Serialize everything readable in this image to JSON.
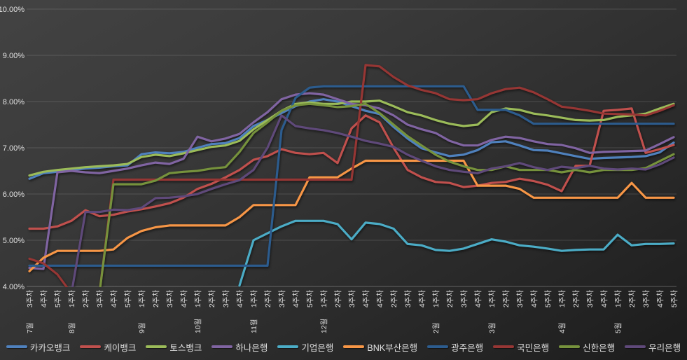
{
  "chart_data": {
    "type": "line",
    "title": "",
    "grid": true,
    "legend_position": "bottom",
    "y_axis": {
      "min": 4,
      "max": 10,
      "step": 1,
      "tick_labels": [
        "10.00%",
        "9.00%",
        "8.00%",
        "7.00%",
        "6.00%",
        "5.00%",
        "4.00%"
      ]
    },
    "x_axis": {
      "week_labels": [
        "3주차",
        "4주차",
        "5주차",
        "1주차",
        "2주차",
        "3주차",
        "4주차",
        "5주차",
        "1주차",
        "2주차",
        "3주차",
        "4주차",
        "1주차",
        "2주차",
        "3주차",
        "4주차",
        "1주차",
        "2주차",
        "3주차",
        "4주차",
        "5주차",
        "1주차",
        "2주차",
        "3주차",
        "4주차",
        "4주차",
        "2주차",
        "3주차",
        "4주차",
        "1주차",
        "2주차",
        "3주차",
        "4주차",
        "1주차",
        "2주차",
        "3주차",
        "4주차",
        "5주차",
        "1주차",
        "2주차",
        "3주차",
        "4주차",
        "1주차",
        "2주차",
        "3주차",
        "4주차",
        "5주차"
      ],
      "month_groups": [
        {
          "label": "7월",
          "start_index": 0
        },
        {
          "label": "8월",
          "start_index": 3
        },
        {
          "label": "9월",
          "start_index": 8
        },
        {
          "label": "10월",
          "start_index": 12
        },
        {
          "label": "11월",
          "start_index": 16
        },
        {
          "label": "12월",
          "start_index": 21
        },
        {
          "label": "2월",
          "start_index": 29
        },
        {
          "label": "3월",
          "start_index": 33
        },
        {
          "label": "4월",
          "start_index": 38
        },
        {
          "label": "5월",
          "start_index": 42
        }
      ]
    },
    "series": [
      {
        "name": "카카오뱅크",
        "color": "#4F81BD",
        "values": [
          6.33,
          6.45,
          6.48,
          6.52,
          6.55,
          6.57,
          6.6,
          6.62,
          6.86,
          6.9,
          6.88,
          6.91,
          7.0,
          7.08,
          7.1,
          7.21,
          7.47,
          7.6,
          7.75,
          7.9,
          8.0,
          8.05,
          8.0,
          7.9,
          7.8,
          7.73,
          7.45,
          7.2,
          6.99,
          6.9,
          6.82,
          6.85,
          6.95,
          7.12,
          7.14,
          7.05,
          6.95,
          6.94,
          6.88,
          6.82,
          6.76,
          6.78,
          6.79,
          6.8,
          6.82,
          6.9,
          7.11
        ]
      },
      {
        "name": "케이뱅크",
        "color": "#C0504D",
        "values": [
          5.25,
          5.25,
          5.3,
          5.42,
          5.65,
          5.52,
          5.55,
          5.62,
          5.67,
          5.73,
          5.8,
          5.92,
          6.11,
          6.22,
          6.36,
          6.52,
          6.74,
          6.82,
          6.97,
          6.89,
          6.86,
          6.89,
          6.67,
          7.42,
          7.7,
          7.55,
          7.0,
          6.52,
          6.36,
          6.26,
          6.24,
          6.15,
          6.18,
          6.24,
          6.26,
          6.33,
          6.28,
          6.2,
          6.06,
          6.61,
          6.61,
          7.8,
          7.82,
          7.85,
          6.89,
          6.97,
          7.06
        ]
      },
      {
        "name": "토스뱅크",
        "color": "#9BBB59",
        "values": [
          6.4,
          6.48,
          6.52,
          6.55,
          6.58,
          6.6,
          6.62,
          6.65,
          6.8,
          6.85,
          6.82,
          6.88,
          6.95,
          7.02,
          7.05,
          7.15,
          7.4,
          7.6,
          7.8,
          7.95,
          7.98,
          7.95,
          7.95,
          8.0,
          8.0,
          8.02,
          7.9,
          7.77,
          7.7,
          7.6,
          7.52,
          7.47,
          7.5,
          7.77,
          7.85,
          7.82,
          7.74,
          7.7,
          7.65,
          7.6,
          7.59,
          7.6,
          7.67,
          7.7,
          7.74,
          7.85,
          7.95
        ]
      },
      {
        "name": "하나은행",
        "color": "#8064A2",
        "values": [
          4.4,
          4.38,
          6.47,
          6.5,
          6.47,
          6.45,
          6.5,
          6.55,
          6.62,
          6.68,
          6.65,
          6.76,
          7.24,
          7.14,
          7.2,
          7.3,
          7.55,
          7.77,
          8.05,
          8.15,
          8.18,
          8.15,
          8.05,
          7.95,
          7.92,
          7.85,
          7.7,
          7.5,
          7.4,
          7.32,
          7.15,
          7.05,
          7.05,
          7.17,
          7.24,
          7.21,
          7.14,
          7.08,
          7.06,
          6.99,
          6.89,
          6.91,
          6.92,
          6.93,
          6.94,
          7.08,
          7.23
        ]
      },
      {
        "name": "기업은행",
        "color": "#4BACC6",
        "values": [
          null,
          null,
          null,
          null,
          null,
          null,
          null,
          null,
          null,
          null,
          null,
          null,
          null,
          null,
          null,
          4.02,
          5.0,
          5.15,
          5.3,
          5.42,
          5.42,
          5.42,
          5.35,
          5.02,
          5.38,
          5.35,
          5.25,
          4.92,
          4.89,
          4.79,
          4.77,
          4.82,
          4.92,
          5.02,
          4.97,
          4.89,
          4.86,
          4.82,
          4.77,
          4.79,
          4.8,
          4.8,
          5.12,
          4.89,
          4.92,
          4.92,
          4.93
        ]
      },
      {
        "name": "BNK부산은행",
        "color": "#F79646",
        "values": [
          4.33,
          4.62,
          4.77,
          4.77,
          4.77,
          4.77,
          4.8,
          5.05,
          5.2,
          5.28,
          5.32,
          5.32,
          5.32,
          5.32,
          5.32,
          5.5,
          5.76,
          5.76,
          5.76,
          5.76,
          6.36,
          6.36,
          6.36,
          6.55,
          6.72,
          6.72,
          6.72,
          6.72,
          6.72,
          6.72,
          6.72,
          6.72,
          6.18,
          6.18,
          6.18,
          6.11,
          5.92,
          5.92,
          5.92,
          5.92,
          5.92,
          5.92,
          5.92,
          6.24,
          5.92,
          5.92,
          5.92
        ]
      },
      {
        "name": "광주은행",
        "color": "#2C5C8E",
        "values": [
          4.45,
          4.45,
          4.45,
          4.45,
          4.45,
          4.45,
          4.45,
          4.45,
          4.45,
          4.45,
          4.45,
          4.45,
          4.45,
          4.45,
          4.45,
          4.45,
          4.45,
          4.45,
          7.38,
          8.08,
          8.3,
          8.33,
          8.33,
          8.33,
          8.33,
          8.33,
          8.33,
          8.33,
          8.33,
          8.33,
          8.33,
          8.33,
          7.82,
          7.82,
          7.82,
          7.7,
          7.52,
          7.52,
          7.52,
          7.52,
          7.52,
          7.52,
          7.52,
          7.52,
          7.52,
          7.52,
          7.52
        ]
      },
      {
        "name": "국민은행",
        "color": "#963634",
        "values": [
          4.6,
          4.5,
          4.26,
          3.85,
          3.85,
          3.85,
          6.31,
          6.31,
          6.31,
          6.31,
          6.31,
          6.31,
          6.31,
          6.31,
          6.31,
          6.31,
          6.31,
          6.31,
          6.31,
          6.31,
          6.31,
          6.31,
          6.31,
          6.31,
          8.79,
          8.76,
          8.53,
          8.35,
          8.25,
          8.18,
          8.05,
          8.03,
          8.05,
          8.18,
          8.27,
          8.3,
          8.2,
          8.05,
          7.89,
          7.85,
          7.8,
          7.74,
          7.73,
          7.72,
          7.7,
          7.8,
          7.92
        ]
      },
      {
        "name": "신한은행",
        "color": "#76923C",
        "values": [
          3.85,
          3.85,
          3.85,
          3.85,
          3.85,
          3.85,
          6.21,
          6.21,
          6.21,
          6.29,
          6.45,
          6.48,
          6.5,
          6.55,
          6.58,
          6.91,
          7.32,
          7.55,
          7.8,
          7.92,
          7.95,
          7.92,
          7.88,
          7.9,
          7.95,
          7.75,
          7.5,
          7.25,
          7.05,
          6.85,
          6.7,
          6.6,
          6.52,
          6.52,
          6.6,
          6.52,
          6.52,
          6.52,
          6.47,
          6.52,
          6.47,
          6.52,
          6.52,
          6.52,
          6.56,
          6.71,
          6.86
        ]
      },
      {
        "name": "우리은행",
        "color": "#5F497A",
        "values": [
          3.85,
          3.85,
          3.85,
          3.85,
          5.61,
          5.61,
          5.66,
          5.65,
          5.7,
          5.91,
          5.92,
          5.95,
          6.0,
          6.11,
          6.21,
          6.3,
          6.52,
          7.0,
          7.7,
          7.47,
          7.42,
          7.38,
          7.32,
          7.24,
          7.15,
          7.09,
          7.02,
          6.85,
          6.72,
          6.6,
          6.52,
          6.48,
          6.45,
          6.55,
          6.6,
          6.67,
          6.58,
          6.52,
          6.59,
          6.56,
          6.61,
          6.55,
          6.53,
          6.55,
          6.53,
          6.64,
          6.79
        ]
      }
    ]
  },
  "colors": {
    "background": "#2e2e2e",
    "grid": "rgba(255,255,255,0.14)",
    "axis_text": "#e2e2e2"
  }
}
